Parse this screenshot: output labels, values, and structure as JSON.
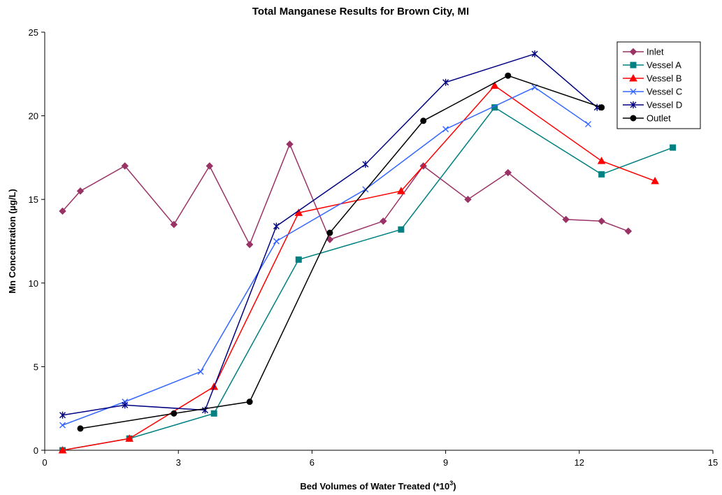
{
  "chart_data": {
    "type": "line",
    "title": "Total Manganese Results for Brown City, MI",
    "xlabel": "Bed Volumes of Water Treated (*10",
    "xlabel_superscript": "3",
    "xlabel_suffix": ")",
    "ylabel": "Mn Concentration (µg/L)",
    "xlim": [
      0,
      15
    ],
    "ylim": [
      0,
      25
    ],
    "xticks": [
      "0",
      "3",
      "6",
      "9",
      "12",
      "15"
    ],
    "yticks": [
      "0",
      "5",
      "10",
      "15",
      "20",
      "25"
    ],
    "grid": false,
    "legend": "top-right",
    "series": [
      {
        "name": "Inlet",
        "color": "#993366",
        "marker": "diamond",
        "x": [
          0.4,
          0.8,
          1.8,
          2.9,
          3.7,
          4.6,
          5.5,
          6.4,
          7.6,
          8.5,
          9.5,
          10.4,
          11.7,
          12.5,
          13.1
        ],
        "y": [
          14.3,
          15.5,
          17.0,
          13.5,
          17.0,
          12.3,
          18.3,
          12.6,
          13.7,
          17.0,
          15.0,
          16.6,
          13.8,
          13.7,
          13.1
        ]
      },
      {
        "name": "Vessel A",
        "color": "#008080",
        "marker": "square",
        "x": [
          0.4,
          1.9,
          3.8,
          5.7,
          8.0,
          10.1,
          12.5,
          14.1
        ],
        "y": [
          0.0,
          0.7,
          2.2,
          11.4,
          13.2,
          20.5,
          16.5,
          18.1
        ]
      },
      {
        "name": "Vessel B",
        "color": "#FF0000",
        "marker": "triangle",
        "x": [
          0.4,
          1.9,
          3.8,
          5.7,
          8.0,
          10.1,
          12.5,
          13.7
        ],
        "y": [
          0.0,
          0.7,
          3.8,
          14.2,
          15.5,
          21.8,
          17.3,
          16.1
        ]
      },
      {
        "name": "Vessel C",
        "color": "#3366FF",
        "marker": "x",
        "x": [
          0.4,
          1.8,
          3.5,
          5.2,
          7.2,
          9.0,
          11.0,
          12.2
        ],
        "y": [
          1.5,
          2.9,
          4.7,
          12.5,
          15.6,
          19.2,
          21.7,
          19.5
        ]
      },
      {
        "name": "Vessel D",
        "color": "#000080",
        "marker": "star",
        "x": [
          0.4,
          1.8,
          3.6,
          5.2,
          7.2,
          9.0,
          11.0,
          12.4
        ],
        "y": [
          2.1,
          2.7,
          2.4,
          13.4,
          17.1,
          22.0,
          23.7,
          20.5
        ]
      },
      {
        "name": "Outlet",
        "color": "#000000",
        "marker": "circle",
        "x": [
          0.8,
          2.9,
          4.6,
          6.4,
          8.5,
          10.4,
          12.5
        ],
        "y": [
          1.3,
          2.2,
          2.9,
          13.0,
          19.7,
          22.4,
          20.5
        ]
      }
    ]
  }
}
